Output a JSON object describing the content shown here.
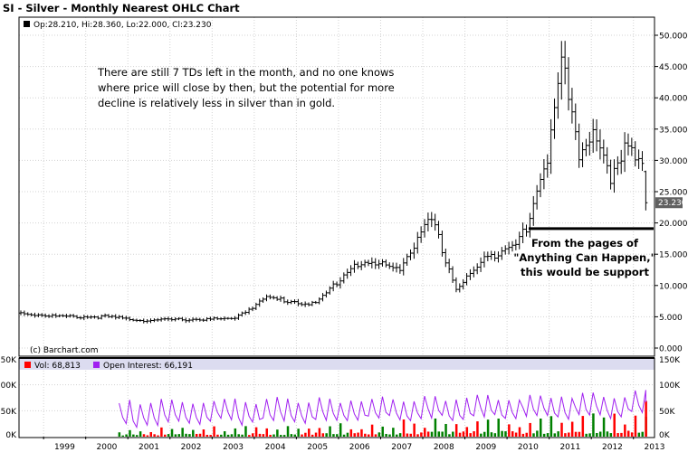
{
  "title": "SI - Silver - Monthly Nearest OHLC Chart",
  "ohlc_legend": "Op:28.210, Hi:28.360, Lo:22.000, Cl:23.230",
  "copyright": "(c) Barchart.com",
  "annotation_top": [
    "There are still 7 TDs left in the month, and no one knows",
    "where price will close by then, but the potential for more",
    "decline is relatively less in silver than in gold."
  ],
  "annotation_support": [
    "From the pages of",
    "\"Anything Can Happen,\"",
    "this would be support"
  ],
  "last_price_label": "23.230",
  "volume_legend": {
    "vol": "Vol: 68,813",
    "oi": "Open Interest: 66,191"
  },
  "colors": {
    "frame": "#000000",
    "price_bar": "#000000",
    "grid": "#d3d3d3",
    "legend_band": "#dcdcf0",
    "vol_up": "#008000",
    "vol_down": "#ff0000",
    "open_interest": "#a020f0",
    "last_price_tag": "#606060",
    "support_line": "#000000"
  },
  "chart_data": [
    {
      "type": "ohlc",
      "title": "SI - Silver - Monthly Nearest OHLC Chart",
      "x_tick_labels": [
        "1999",
        "2000",
        "2001",
        "2002",
        "2003",
        "2004",
        "2005",
        "2006",
        "2007",
        "2008",
        "2009",
        "2010",
        "2011",
        "2012",
        "2013"
      ],
      "x_range": [
        "1998-06",
        "2013-07"
      ],
      "y_ticks": [
        "0.000",
        "5.000",
        "10.000",
        "15.000",
        "20.000",
        "25.000",
        "30.000",
        "35.000",
        "40.000",
        "45.000",
        "50.000"
      ],
      "ylim": [
        0,
        50
      ],
      "grid": true,
      "last_bar": {
        "open": 28.21,
        "high": 28.36,
        "low": 22.0,
        "close": 23.23
      },
      "support_level": 19.1,
      "closes_sample": [
        {
          "date": "1998-06",
          "close": 5.6
        },
        {
          "date": "1999-06",
          "close": 5.0
        },
        {
          "date": "2000-06",
          "close": 5.0
        },
        {
          "date": "2001-06",
          "close": 4.4
        },
        {
          "date": "2002-06",
          "close": 4.6
        },
        {
          "date": "2003-06",
          "close": 4.6
        },
        {
          "date": "2004-04",
          "close": 8.0
        },
        {
          "date": "2005-06",
          "close": 7.0
        },
        {
          "date": "2006-05",
          "close": 13.5
        },
        {
          "date": "2007-06",
          "close": 13.0
        },
        {
          "date": "2008-03",
          "close": 20.5
        },
        {
          "date": "2008-10",
          "close": 9.5
        },
        {
          "date": "2009-06",
          "close": 14.0
        },
        {
          "date": "2010-06",
          "close": 18.5
        },
        {
          "date": "2010-12",
          "close": 30.5
        },
        {
          "date": "2011-04",
          "close": 48.5
        },
        {
          "date": "2011-09",
          "close": 30.0
        },
        {
          "date": "2012-02",
          "close": 34.5
        },
        {
          "date": "2012-06",
          "close": 27.5
        },
        {
          "date": "2012-10",
          "close": 32.5
        },
        {
          "date": "2013-03",
          "close": 28.2
        },
        {
          "date": "2013-04",
          "close": 23.23
        }
      ]
    },
    {
      "type": "bar",
      "title": "Volume and Open Interest",
      "series_names": [
        "Vol",
        "Open Interest"
      ],
      "y_tick_labels": [
        "0K",
        "50K",
        "100K",
        "150K"
      ],
      "ylim": [
        0,
        150000
      ],
      "x_range": [
        "1998-06",
        "2013-07"
      ],
      "volume_start": "2000-10",
      "last_vol": 68813,
      "last_open_interest": 66191
    }
  ]
}
